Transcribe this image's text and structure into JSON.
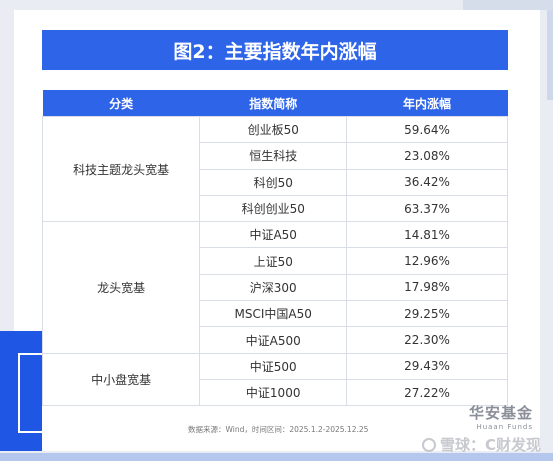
{
  "title": "图2：主要指数年内涨幅",
  "table": {
    "headers": [
      "分类",
      "指数简称",
      "年内涨幅"
    ],
    "groups": [
      {
        "category": "科技主题龙头宽基",
        "rows": [
          {
            "name": "创业板50",
            "change": "59.64%"
          },
          {
            "name": "恒生科技",
            "change": "23.08%"
          },
          {
            "name": "科创50",
            "change": "36.42%"
          },
          {
            "name": "科创创业50",
            "change": "63.37%"
          }
        ]
      },
      {
        "category": "龙头宽基",
        "rows": [
          {
            "name": "中证A50",
            "change": "14.81%"
          },
          {
            "name": "上证50",
            "change": "12.96%"
          },
          {
            "name": "沪深300",
            "change": "17.98%"
          },
          {
            "name": "MSCI中国A50",
            "change": "29.25%"
          },
          {
            "name": "中证A500",
            "change": "22.30%"
          }
        ]
      },
      {
        "category": "中小盘宽基",
        "rows": [
          {
            "name": "中证500",
            "change": "29.43%"
          },
          {
            "name": "中证1000",
            "change": "27.22%"
          }
        ]
      }
    ]
  },
  "source": "数据来源：Wind，时间区间：2025.1.2-2025.12.25",
  "brand": {
    "cn": "华安基金",
    "en": "Huaan Funds"
  },
  "watermark": {
    "text": "雪球：C财发现",
    "icon": "snowball-logo-icon"
  },
  "colors": {
    "accent": "#2d64e8",
    "background": "#e9ecf2"
  }
}
